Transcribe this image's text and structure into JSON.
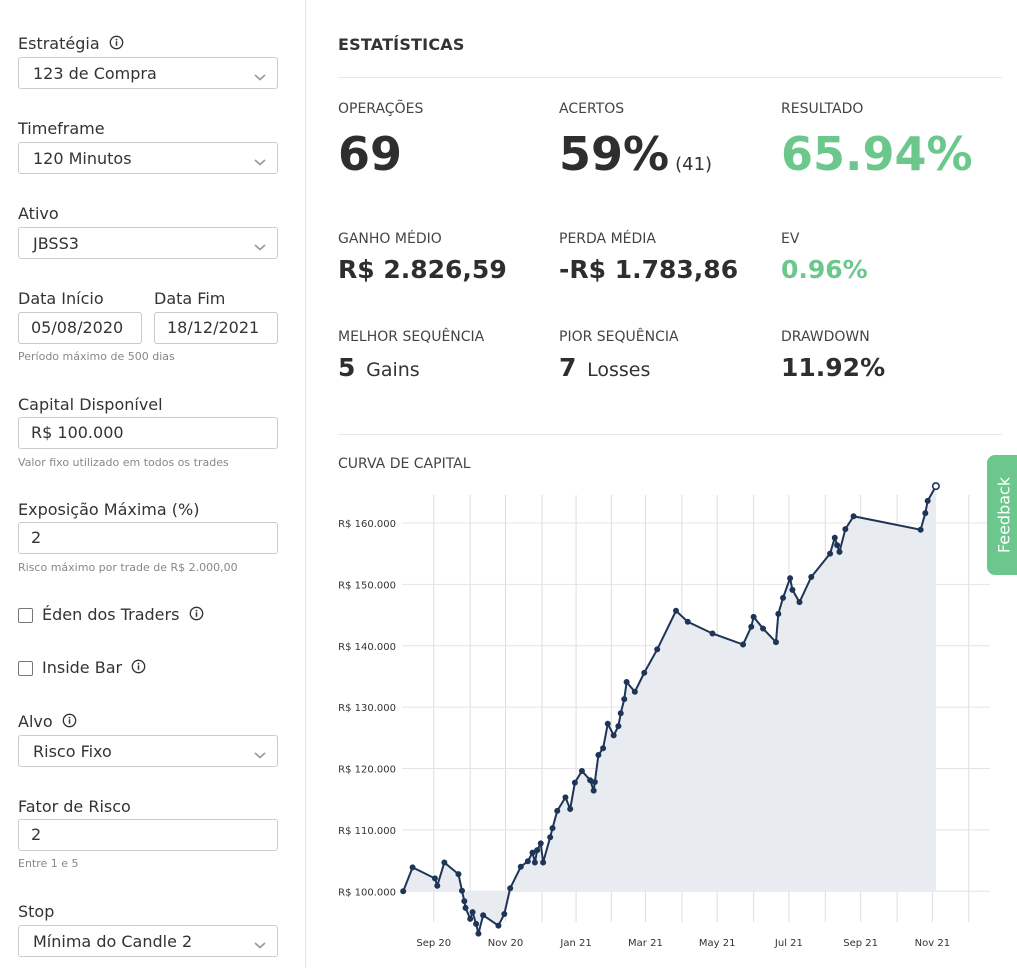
{
  "sidebar": {
    "estrategia": {
      "label": "Estratégia",
      "value": "123 de Compra"
    },
    "timeframe": {
      "label": "Timeframe",
      "value": "120 Minutos"
    },
    "ativo": {
      "label": "Ativo",
      "value": "JBSS3"
    },
    "data_inicio": {
      "label": "Data Início",
      "value": "05/08/2020"
    },
    "data_fim": {
      "label": "Data Fim",
      "value": "18/12/2021"
    },
    "periodo_hint": "Período máximo de 500 dias",
    "capital": {
      "label": "Capital Disponível",
      "value": "R$ 100.000",
      "hint": "Valor fixo utilizado em todos os trades"
    },
    "exposicao": {
      "label": "Exposição Máxima (%)",
      "value": "2",
      "hint": "Risco máximo por trade de R$ 2.000,00"
    },
    "eden": {
      "label": "Éden dos Traders",
      "checked": false
    },
    "inside_bar": {
      "label": "Inside Bar",
      "checked": false
    },
    "alvo": {
      "label": "Alvo",
      "value": "Risco Fixo"
    },
    "fator_risco": {
      "label": "Fator de Risco",
      "value": "2",
      "hint": "Entre 1 e 5"
    },
    "stop": {
      "label": "Stop",
      "value": "Mínima do Candle 2"
    }
  },
  "stats": {
    "title": "ESTATÍSTICAS",
    "operacoes": {
      "label": "OPERAÇÕES",
      "value": "69"
    },
    "acertos": {
      "label": "ACERTOS",
      "value": "59%",
      "sub": "(41)"
    },
    "resultado": {
      "label": "RESULTADO",
      "value": "65.94%"
    },
    "ganho_medio": {
      "label": "GANHO MÉDIO",
      "value": "R$ 2.826,59"
    },
    "perda_media": {
      "label": "PERDA MÉDIA",
      "value": "-R$ 1.783,86"
    },
    "ev": {
      "label": "EV",
      "value": "0.96%"
    },
    "melhor_sequencia": {
      "label": "MELHOR SEQUÊNCIA",
      "value": "5",
      "unit": "Gains"
    },
    "pior_sequencia": {
      "label": "PIOR SEQUÊNCIA",
      "value": "7",
      "unit": "Losses"
    },
    "drawdown": {
      "label": "DRAWDOWN",
      "value": "11.92%"
    }
  },
  "feedback_label": "Feedback",
  "colors": {
    "accent_green": "#6bc78c",
    "line": "#1e3557",
    "area": "#e8ecf1"
  },
  "icons": {
    "info": "info-icon",
    "chevron": "chevron-down-icon"
  },
  "chart_data": {
    "type": "area",
    "title": "CURVA DE CAPITAL",
    "xlabel": "",
    "ylabel": "",
    "baseline": 100000,
    "ylim": [
      95000,
      167000
    ],
    "y_ticks": [
      100000,
      110000,
      120000,
      130000,
      140000,
      150000,
      160000
    ],
    "y_tick_labels": [
      "R$ 100.000",
      "R$ 110.000",
      "R$ 120.000",
      "R$ 130.000",
      "R$ 140.000",
      "R$ 150.000",
      "R$ 160.000"
    ],
    "x_range_days": [
      0,
      500
    ],
    "x_ticks_days": [
      27,
      88,
      148,
      207,
      268,
      329,
      390,
      451
    ],
    "x_tick_labels": [
      "Sep 20",
      "Nov 20",
      "Jan 21",
      "Mar 21",
      "May 21",
      "Jul 21",
      "Sep 21",
      "Nov 21"
    ],
    "grid_days": [
      27,
      58,
      88,
      119,
      148,
      178,
      207,
      238,
      268,
      299,
      329,
      360,
      390,
      421,
      451,
      482
    ],
    "series": [
      {
        "name": "Capital",
        "points": [
          [
            1,
            100000
          ],
          [
            9,
            103900
          ],
          [
            28,
            102100
          ],
          [
            30,
            100900
          ],
          [
            36,
            104700
          ],
          [
            48,
            102800
          ],
          [
            51,
            100100
          ],
          [
            53,
            98400
          ],
          [
            54,
            97300
          ],
          [
            58,
            95500
          ],
          [
            60,
            96600
          ],
          [
            63,
            94700
          ],
          [
            65,
            93100
          ],
          [
            69,
            96100
          ],
          [
            82,
            94400
          ],
          [
            87,
            96300
          ],
          [
            92,
            100500
          ],
          [
            101,
            104000
          ],
          [
            107,
            104900
          ],
          [
            111,
            106300
          ],
          [
            113,
            104700
          ],
          [
            115,
            106700
          ],
          [
            118,
            107800
          ],
          [
            120,
            104700
          ],
          [
            126,
            108800
          ],
          [
            128,
            110300
          ],
          [
            132,
            113100
          ],
          [
            139,
            115300
          ],
          [
            143,
            113400
          ],
          [
            147,
            117700
          ],
          [
            153,
            119600
          ],
          [
            160,
            118100
          ],
          [
            163,
            116400
          ],
          [
            164,
            117800
          ],
          [
            167,
            122200
          ],
          [
            171,
            123300
          ],
          [
            175,
            127300
          ],
          [
            180,
            125400
          ],
          [
            184,
            126900
          ],
          [
            186,
            129000
          ],
          [
            189,
            131300
          ],
          [
            191,
            134100
          ],
          [
            198,
            132500
          ],
          [
            206,
            135600
          ],
          [
            217,
            139400
          ],
          [
            233,
            145700
          ],
          [
            243,
            143900
          ],
          [
            264,
            142000
          ],
          [
            290,
            140200
          ],
          [
            297,
            143100
          ],
          [
            299,
            144700
          ],
          [
            307,
            142800
          ],
          [
            318,
            140600
          ],
          [
            320,
            145200
          ],
          [
            324,
            147800
          ],
          [
            330,
            151000
          ],
          [
            332,
            149100
          ],
          [
            338,
            147100
          ],
          [
            348,
            151200
          ],
          [
            364,
            155000
          ],
          [
            368,
            157600
          ],
          [
            370,
            156400
          ],
          [
            372,
            155300
          ],
          [
            377,
            159000
          ],
          [
            384,
            161100
          ],
          [
            441,
            158900
          ],
          [
            445,
            161600
          ],
          [
            447,
            163600
          ],
          [
            454,
            166000
          ]
        ]
      }
    ]
  }
}
